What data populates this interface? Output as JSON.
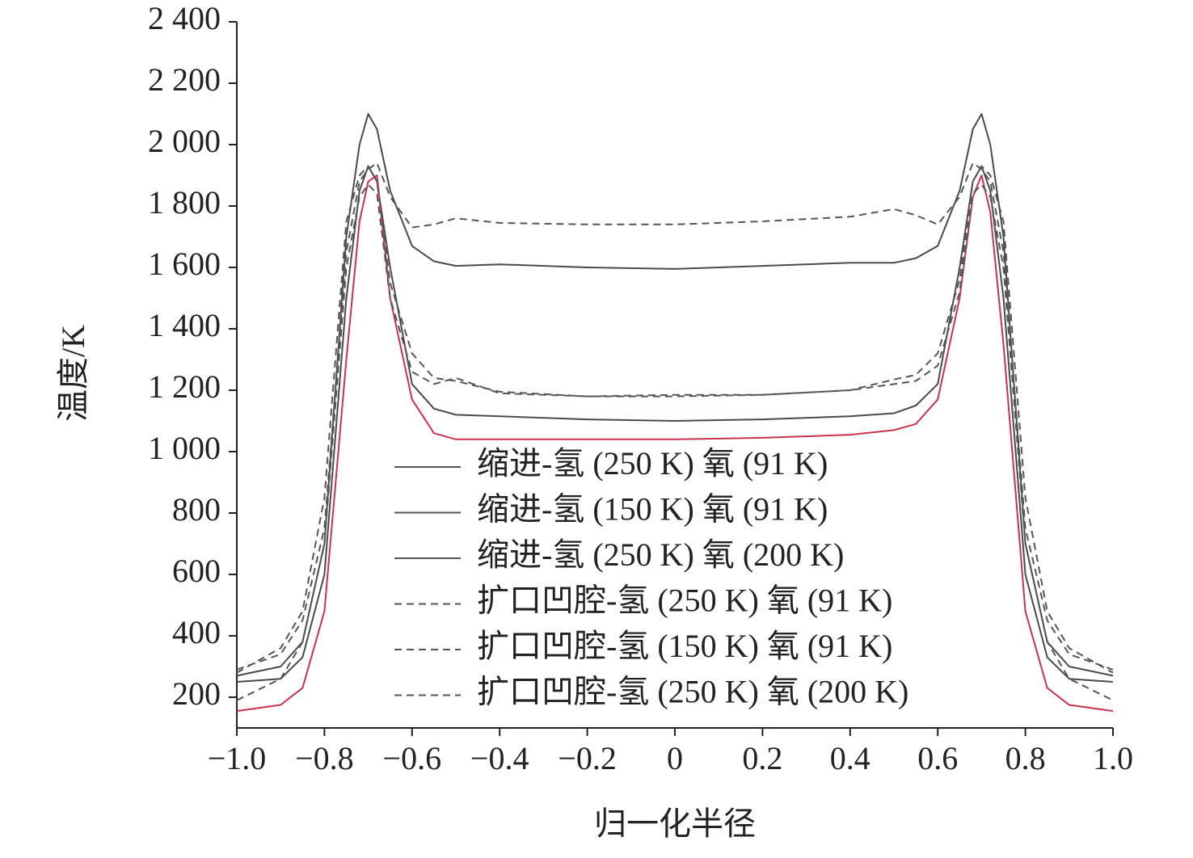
{
  "chart_data": {
    "type": "line",
    "x_label": "归一化半径",
    "y_label": "温度/K",
    "x": [
      -1.0,
      -0.9,
      -0.85,
      -0.8,
      -0.75,
      -0.72,
      -0.7,
      -0.68,
      -0.65,
      -0.6,
      -0.55,
      -0.5,
      -0.4,
      -0.2,
      0,
      0.2,
      0.4,
      0.5,
      0.55,
      0.6,
      0.65,
      0.68,
      0.7,
      0.72,
      0.75,
      0.8,
      0.85,
      0.9,
      1.0
    ],
    "xlim": [
      -1.0,
      1.0
    ],
    "xticks": [
      {
        "value": -1.0,
        "label": "−1.0"
      },
      {
        "value": -0.8,
        "label": "−0.8"
      },
      {
        "value": -0.6,
        "label": "−0.6"
      },
      {
        "value": -0.4,
        "label": "−0.4"
      },
      {
        "value": -0.2,
        "label": "−0.2"
      },
      0,
      0.2,
      0.4,
      0.6,
      0.8,
      {
        "value": 1.0,
        "label": "1.0"
      }
    ],
    "ylim": [
      100,
      2400
    ],
    "yticks": [
      200,
      400,
      600,
      800,
      {
        "value": 1000,
        "label": "1 000"
      },
      {
        "value": 1200,
        "label": "1 200"
      },
      {
        "value": 1400,
        "label": "1 400"
      },
      {
        "value": 1600,
        "label": "1 600"
      },
      {
        "value": 1800,
        "label": "1 800"
      },
      {
        "value": 2000,
        "label": "2 000"
      },
      {
        "value": 2200,
        "label": "2 200"
      },
      {
        "value": 2400,
        "label": "2 400"
      }
    ],
    "series": [
      {
        "name": "缩进-氢 (250 K) 氧 (91 K)",
        "color": "#4a4a4a",
        "dashed": false,
        "values": [
          270,
          300,
          380,
          700,
          1700,
          2000,
          2100,
          2050,
          1850,
          1670,
          1620,
          1605,
          1610,
          1600,
          1595,
          1605,
          1615,
          1615,
          1630,
          1670,
          1850,
          2050,
          2100,
          2000,
          1700,
          700,
          380,
          300,
          270
        ]
      },
      {
        "name": "缩进-氢 (150 K) 氧 (91 K)",
        "color": "#4a4a4a",
        "dashed": false,
        "values": [
          250,
          260,
          330,
          600,
          1500,
          1850,
          1930,
          1880,
          1600,
          1220,
          1140,
          1120,
          1115,
          1105,
          1100,
          1105,
          1115,
          1125,
          1150,
          1220,
          1600,
          1880,
          1930,
          1850,
          1500,
          600,
          330,
          260,
          250
        ]
      },
      {
        "name": "缩进-氢 (250 K) 氧 (200 K)",
        "color": "#c8324e",
        "dashed": false,
        "values": [
          155,
          175,
          230,
          480,
          1300,
          1750,
          1880,
          1900,
          1500,
          1170,
          1060,
          1040,
          1040,
          1040,
          1040,
          1045,
          1055,
          1070,
          1090,
          1170,
          1500,
          1830,
          1900,
          1780,
          1350,
          480,
          230,
          175,
          155
        ]
      },
      {
        "name": "扩口凹腔-氢 (250 K) 氧 (91 K)",
        "color": "#555555",
        "dashed": true,
        "values": [
          290,
          340,
          450,
          750,
          1650,
          1880,
          1920,
          1940,
          1830,
          1730,
          1740,
          1760,
          1745,
          1740,
          1740,
          1750,
          1765,
          1790,
          1770,
          1740,
          1830,
          1940,
          1920,
          1880,
          1650,
          750,
          450,
          340,
          290
        ]
      },
      {
        "name": "扩口凹腔-氢 (150 K) 氧 (91 K)",
        "color": "#555555",
        "dashed": true,
        "values": [
          280,
          360,
          480,
          850,
          1750,
          1900,
          1930,
          1880,
          1550,
          1320,
          1240,
          1230,
          1195,
          1180,
          1180,
          1185,
          1200,
          1235,
          1250,
          1320,
          1560,
          1880,
          1930,
          1900,
          1750,
          850,
          480,
          360,
          280
        ]
      },
      {
        "name": "扩口凹腔-氢 (250 K) 氧 (200 K)",
        "color": "#555555",
        "dashed": true,
        "values": [
          190,
          260,
          380,
          700,
          1600,
          1830,
          1870,
          1840,
          1500,
          1260,
          1220,
          1240,
          1190,
          1180,
          1185,
          1185,
          1200,
          1220,
          1230,
          1280,
          1520,
          1840,
          1870,
          1830,
          1600,
          700,
          380,
          260,
          190
        ]
      }
    ]
  }
}
